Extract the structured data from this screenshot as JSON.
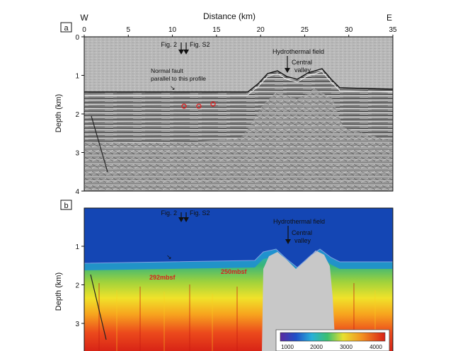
{
  "figure": {
    "x_axis_title": "Distance (km)",
    "dir_west": "W",
    "dir_east": "E",
    "x_ticks": [
      "0",
      "5",
      "10",
      "15",
      "20",
      "25",
      "30",
      "35"
    ],
    "y_axis_title": "Depth (km)"
  },
  "panel_a": {
    "letter": "a",
    "depth_ticks": [
      "0",
      "1",
      "2",
      "3",
      "4"
    ],
    "labels": {
      "fig2": "Fig. 2",
      "figS2": "Fig. S2",
      "normal_fault": "Normal fault",
      "parallel": "parallel to this profile",
      "hydrothermal": "Hydrothermal field",
      "central": "Central",
      "valley": "valley"
    }
  },
  "panel_b": {
    "letter": "b",
    "depth_ticks": [
      "1",
      "2",
      "3"
    ],
    "labels": {
      "fig2": "Fig. 2",
      "figS2": "Fig. S2",
      "hydrothermal": "Hydrothermal field",
      "central": "Central",
      "valley": "valley",
      "mbsf_292": "292mbsf",
      "mbsf_250": "250mbsf"
    },
    "colorbar_ticks": [
      "1000",
      "2000",
      "3000",
      "4000"
    ]
  },
  "colors": {
    "seismic_gray": "#b8b8b8",
    "water_blue": "#1446b4",
    "velocity_red": "#e8341c"
  }
}
